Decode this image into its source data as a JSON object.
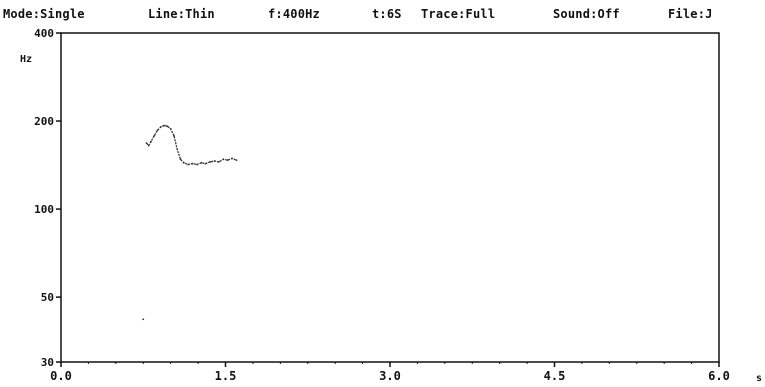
{
  "status": {
    "mode": "Mode:Single",
    "line": "Line:Thin",
    "freq": "f:400Hz",
    "time": "t:6S",
    "trace": "Trace:Full",
    "sound": "Sound:Off",
    "file": "File:J"
  },
  "chart_data": {
    "type": "line",
    "title": "",
    "ylabel": "Hz",
    "xlabel": "s",
    "yscale": "log",
    "ylim": [
      30,
      400
    ],
    "xlim": [
      0,
      6
    ],
    "x_ticks": [
      {
        "value": 0,
        "label": "0.0"
      },
      {
        "value": 1.5,
        "label": "1.5"
      },
      {
        "value": 3,
        "label": "3.0"
      },
      {
        "value": 4.5,
        "label": "4.5"
      },
      {
        "value": 6,
        "label": "6.0"
      }
    ],
    "y_ticks": [
      {
        "value": 400,
        "label": "400"
      },
      {
        "value": 200,
        "label": "200"
      },
      {
        "value": 100,
        "label": "100"
      },
      {
        "value": 50,
        "label": "50"
      },
      {
        "value": 30,
        "label": "30"
      }
    ],
    "grid": false,
    "series": [
      {
        "points": [
          [
            0.78,
            168
          ],
          [
            0.8,
            165
          ],
          [
            0.82,
            170
          ],
          [
            0.85,
            178
          ],
          [
            0.88,
            186
          ],
          [
            0.91,
            191
          ],
          [
            0.94,
            193
          ],
          [
            0.97,
            192
          ],
          [
            1.0,
            188
          ],
          [
            1.03,
            178
          ],
          [
            1.06,
            160
          ],
          [
            1.09,
            148
          ],
          [
            1.12,
            144
          ],
          [
            1.16,
            142
          ],
          [
            1.2,
            143
          ],
          [
            1.24,
            142
          ],
          [
            1.28,
            144
          ],
          [
            1.32,
            143
          ],
          [
            1.36,
            145
          ],
          [
            1.4,
            146
          ],
          [
            1.44,
            145
          ],
          [
            1.48,
            148
          ],
          [
            1.52,
            147
          ],
          [
            1.56,
            149
          ],
          [
            1.6,
            147
          ]
        ]
      },
      {
        "points": [
          [
            0.75,
            42
          ]
        ]
      }
    ]
  }
}
